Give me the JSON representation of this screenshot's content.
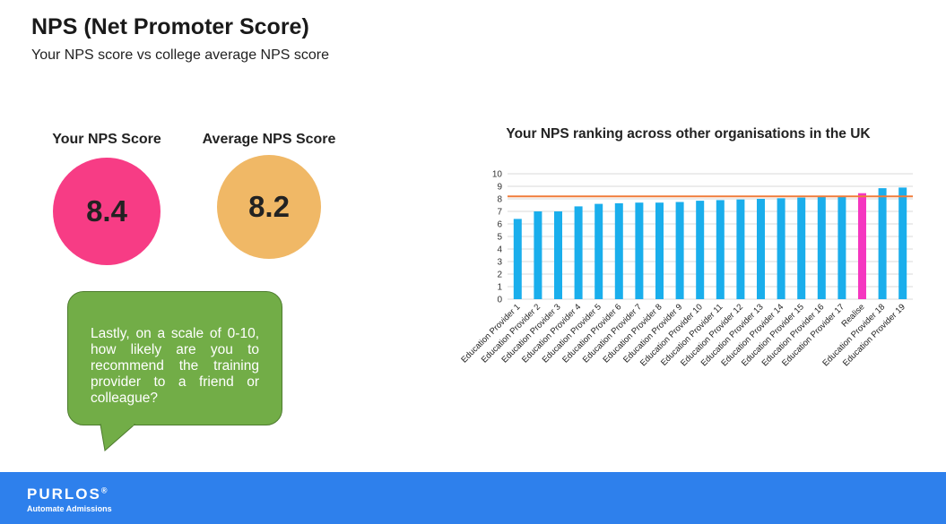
{
  "header": {
    "title": "NPS (Net Promoter Score)",
    "subtitle": "Your NPS score vs college average NPS score"
  },
  "metrics": {
    "your": {
      "label": "Your NPS Score",
      "value": "8.4",
      "color": "#f73c85"
    },
    "average": {
      "label": "Average NPS Score",
      "value": "8.2",
      "color": "#f0b866"
    }
  },
  "question": {
    "text": "Lastly, on a scale of 0-10, how likely are you to recommend the training provider to a friend or colleague?",
    "color": "#72ad47"
  },
  "chart_data": {
    "type": "bar",
    "title": "Your NPS ranking across other organisations in the UK",
    "xlabel": "",
    "ylabel": "",
    "ylim": [
      0,
      10
    ],
    "yticks": [
      0,
      1,
      2,
      3,
      4,
      5,
      6,
      7,
      8,
      9,
      10
    ],
    "grid": true,
    "categories": [
      "Education Provider 1",
      "Education Provider 2",
      "Education Provider 3",
      "Education Provider 4",
      "Education Provider 5",
      "Education Provider 6",
      "Education Provider 7",
      "Education Provider 8",
      "Education Provider 9",
      "Education Provider 10",
      "Education Provider 11",
      "Education Provider 12",
      "Education Provider 13",
      "Education Provider 14",
      "Education Provider 15",
      "Education Provider 16",
      "Education Provider 17",
      "Realise",
      "Education Provider 18",
      "Education Provider 19"
    ],
    "values": [
      6.4,
      7.0,
      7.0,
      7.4,
      7.6,
      7.65,
      7.7,
      7.7,
      7.75,
      7.85,
      7.9,
      7.95,
      8.0,
      8.05,
      8.1,
      8.15,
      8.2,
      8.45,
      8.85,
      8.9
    ],
    "highlight_index": 17,
    "bar_color": "#1aaeec",
    "highlight_color": "#f536c0",
    "average_line": {
      "value": 8.2,
      "color": "#f07c3a"
    }
  },
  "footer": {
    "brand": "PURLOS",
    "brand_mark": "®",
    "tagline": "Automate Admissions",
    "color": "#2e80ec"
  }
}
